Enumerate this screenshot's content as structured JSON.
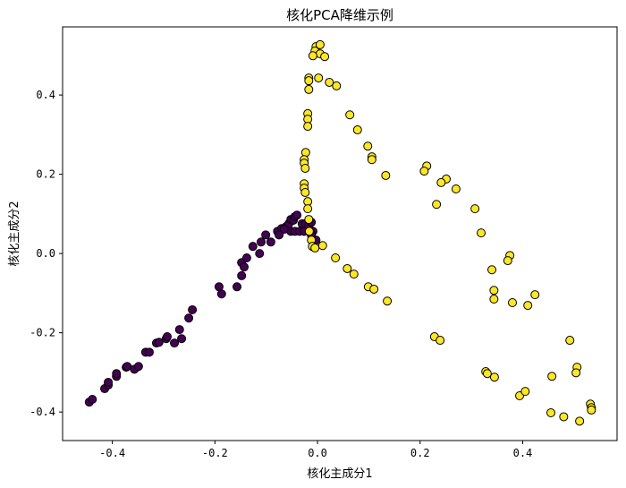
{
  "chart_data": {
    "type": "scatter",
    "title": "核化PCA降维示例",
    "xlabel": "核化主成分1",
    "ylabel": "核化主成分2",
    "xlim": [
      -0.497,
      0.584
    ],
    "ylim": [
      -0.472,
      0.572
    ],
    "xticks": [
      -0.4,
      -0.2,
      0.0,
      0.2,
      0.4
    ],
    "xtick_labels": [
      "-0.4",
      "-0.2",
      "0.0",
      "0.2",
      "0.4"
    ],
    "yticks": [
      -0.4,
      -0.2,
      0.0,
      0.2,
      0.4
    ],
    "ytick_labels": [
      "-0.4",
      "-0.2",
      "0.0",
      "0.2",
      "0.4"
    ],
    "grid": false,
    "marker_edge_color": "#000000",
    "series": [
      {
        "color": "#440154",
        "points": [
          [
            -0.445,
            -0.375
          ],
          [
            -0.439,
            -0.368
          ],
          [
            -0.415,
            -0.341
          ],
          [
            -0.408,
            -0.332
          ],
          [
            -0.408,
            -0.325
          ],
          [
            -0.392,
            -0.31
          ],
          [
            -0.392,
            -0.303
          ],
          [
            -0.373,
            -0.287
          ],
          [
            -0.371,
            -0.285
          ],
          [
            -0.357,
            -0.292
          ],
          [
            -0.349,
            -0.285
          ],
          [
            -0.335,
            -0.249
          ],
          [
            -0.328,
            -0.249
          ],
          [
            -0.314,
            -0.226
          ],
          [
            -0.309,
            -0.224
          ],
          [
            -0.295,
            -0.215
          ],
          [
            -0.293,
            -0.21
          ],
          [
            -0.279,
            -0.226
          ],
          [
            -0.265,
            -0.215
          ],
          [
            -0.269,
            -0.192
          ],
          [
            -0.251,
            -0.163
          ],
          [
            -0.244,
            -0.142
          ],
          [
            -0.192,
            -0.084
          ],
          [
            -0.187,
            -0.102
          ],
          [
            -0.157,
            -0.084
          ],
          [
            -0.148,
            -0.056
          ],
          [
            -0.148,
            -0.023
          ],
          [
            -0.143,
            -0.034
          ],
          [
            -0.138,
            -0.011
          ],
          [
            -0.126,
            0.018
          ],
          [
            -0.113,
            0.0
          ],
          [
            -0.11,
            0.029
          ],
          [
            -0.101,
            0.047
          ],
          [
            -0.091,
            0.029
          ],
          [
            -0.078,
            0.056
          ],
          [
            -0.07,
            0.063
          ],
          [
            -0.061,
            0.068
          ],
          [
            -0.056,
            0.075
          ],
          [
            -0.052,
            0.086
          ],
          [
            -0.047,
            0.084
          ],
          [
            -0.044,
            0.093
          ],
          [
            -0.04,
            0.097
          ],
          [
            -0.052,
            0.056
          ],
          [
            -0.044,
            0.056
          ],
          [
            -0.035,
            0.056
          ],
          [
            -0.026,
            0.056
          ],
          [
            -0.03,
            0.075
          ],
          [
            -0.023,
            0.075
          ],
          [
            -0.017,
            0.07
          ],
          [
            -0.012,
            0.079
          ],
          [
            -0.009,
            0.056
          ],
          [
            -0.003,
            0.034
          ],
          [
            -0.012,
            0.047
          ],
          [
            -0.065,
            0.061
          ],
          [
            -0.075,
            0.047
          ]
        ]
      },
      {
        "color": "#fde725",
        "points": [
          [
            -0.003,
            0.522
          ],
          [
            0.005,
            0.527
          ],
          [
            -0.005,
            0.511
          ],
          [
            0.005,
            0.504
          ],
          [
            0.014,
            0.497
          ],
          [
            -0.009,
            0.499
          ],
          [
            0.002,
            0.443
          ],
          [
            0.023,
            0.432
          ],
          [
            0.037,
            0.423
          ],
          [
            -0.017,
            0.443
          ],
          [
            -0.017,
            0.436
          ],
          [
            -0.017,
            0.414
          ],
          [
            0.063,
            0.35
          ],
          [
            0.078,
            0.312
          ],
          [
            0.098,
            0.271
          ],
          [
            0.106,
            0.244
          ],
          [
            0.106,
            0.237
          ],
          [
            0.133,
            0.197
          ],
          [
            -0.019,
            0.353
          ],
          [
            -0.019,
            0.339
          ],
          [
            -0.019,
            0.321
          ],
          [
            -0.023,
            0.255
          ],
          [
            0.213,
            0.221
          ],
          [
            0.208,
            0.208
          ],
          [
            0.232,
            0.124
          ],
          [
            0.251,
            0.188
          ],
          [
            0.241,
            0.179
          ],
          [
            0.27,
            0.163
          ],
          [
            0.307,
            0.113
          ],
          [
            0.319,
            0.052
          ],
          [
            0.375,
            -0.005
          ],
          [
            0.371,
            -0.018
          ],
          [
            0.34,
            -0.041
          ],
          [
            0.344,
            -0.093
          ],
          [
            0.344,
            -0.115
          ],
          [
            0.38,
            -0.124
          ],
          [
            0.41,
            -0.131
          ],
          [
            0.424,
            -0.104
          ],
          [
            -0.026,
            0.237
          ],
          [
            -0.026,
            0.228
          ],
          [
            -0.024,
            0.215
          ],
          [
            -0.026,
            0.176
          ],
          [
            -0.026,
            0.165
          ],
          [
            -0.024,
            0.154
          ],
          [
            -0.019,
            0.131
          ],
          [
            -0.019,
            0.113
          ],
          [
            -0.017,
            0.086
          ],
          [
            -0.016,
            0.056
          ],
          [
            -0.012,
            0.034
          ],
          [
            -0.01,
            0.018
          ],
          [
            -0.005,
            0.014
          ],
          [
            0.01,
            0.02
          ],
          [
            0.035,
            -0.011
          ],
          [
            0.058,
            -0.038
          ],
          [
            0.071,
            -0.052
          ],
          [
            0.099,
            -0.084
          ],
          [
            0.11,
            -0.09
          ],
          [
            0.136,
            -0.12
          ],
          [
            0.228,
            -0.21
          ],
          [
            0.239,
            -0.219
          ],
          [
            0.328,
            -0.298
          ],
          [
            0.331,
            -0.303
          ],
          [
            0.345,
            -0.312
          ],
          [
            0.457,
            -0.31
          ],
          [
            0.506,
            -0.287
          ],
          [
            0.504,
            -0.301
          ],
          [
            0.492,
            -0.219
          ],
          [
            0.48,
            -0.412
          ],
          [
            0.455,
            -0.402
          ],
          [
            0.394,
            -0.359
          ],
          [
            0.405,
            -0.348
          ],
          [
            0.532,
            -0.38
          ],
          [
            0.534,
            -0.389
          ],
          [
            0.534,
            -0.395
          ],
          [
            0.511,
            -0.423
          ]
        ]
      }
    ]
  }
}
